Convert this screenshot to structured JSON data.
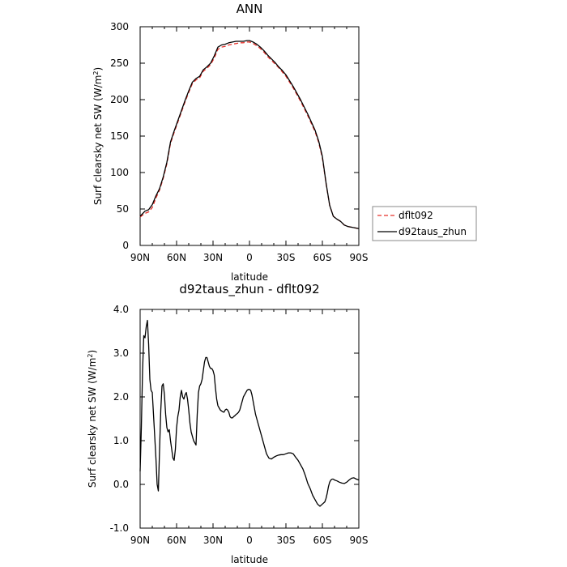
{
  "chart_data": [
    {
      "type": "line",
      "title": "ANN",
      "xlabel": "latitude",
      "ylabel": "Surf clearsky net SW (W/m",
      "ylabel_sup": "2",
      "ylabel_close": ")",
      "xlim": [
        90,
        -90
      ],
      "ylim": [
        0,
        300
      ],
      "xticks": [
        90,
        60,
        30,
        0,
        -30,
        -60,
        -90
      ],
      "xtick_labels": [
        "90N",
        "60N",
        "30N",
        "0",
        "30S",
        "60S",
        "90S"
      ],
      "yticks": [
        0,
        50,
        100,
        150,
        200,
        250,
        300
      ],
      "ytick_labels": [
        "0",
        "50",
        "100",
        "150",
        "200",
        "250",
        "300"
      ],
      "legend": {
        "placement": "right",
        "entries": [
          "dflt092",
          "d92taus_zhun"
        ]
      },
      "series": [
        {
          "name": "dflt092",
          "color": "#e8302a",
          "dash": "dashed",
          "x": [
            90,
            86,
            83,
            80,
            77,
            74,
            71,
            68,
            65,
            62,
            59,
            56,
            53,
            50,
            47,
            44,
            41,
            38,
            35,
            32,
            29,
            26,
            23,
            20,
            17,
            14,
            11,
            8,
            5,
            2,
            0,
            -3,
            -6,
            -9,
            -12,
            -15,
            -18,
            -21,
            -24,
            -27,
            -30,
            -33,
            -36,
            -39,
            -42,
            -45,
            -48,
            -51,
            -54,
            -57,
            -60,
            -63,
            -66,
            -69,
            -72,
            -75,
            -78,
            -81,
            -84,
            -87,
            -90
          ],
          "y": [
            39,
            44,
            46,
            52,
            65,
            76,
            92,
            112,
            140,
            155,
            169,
            183,
            197,
            210,
            222,
            227,
            230,
            239,
            243,
            248,
            257,
            269,
            272,
            273,
            275,
            276,
            277,
            278,
            278,
            279,
            279,
            277,
            274,
            270,
            265,
            259,
            254,
            249,
            244,
            238,
            232,
            224,
            216,
            207,
            198,
            188,
            178,
            167,
            156,
            141,
            120,
            85,
            55,
            40,
            36,
            33,
            28,
            26,
            25,
            24,
            23
          ]
        },
        {
          "name": "d92taus_zhun",
          "color": "#000000",
          "dash": "solid",
          "x": [
            90,
            86,
            83,
            80,
            77,
            74,
            71,
            68,
            65,
            62,
            59,
            56,
            53,
            50,
            47,
            44,
            41,
            38,
            35,
            32,
            29,
            26,
            23,
            20,
            17,
            14,
            11,
            8,
            5,
            2,
            0,
            -3,
            -6,
            -9,
            -12,
            -15,
            -18,
            -21,
            -24,
            -27,
            -30,
            -33,
            -36,
            -39,
            -42,
            -45,
            -48,
            -51,
            -54,
            -57,
            -60,
            -63,
            -66,
            -69,
            -72,
            -75,
            -78,
            -81,
            -84,
            -87,
            -90
          ],
          "y": [
            40,
            47,
            49,
            56,
            68,
            78,
            94,
            114,
            142,
            157,
            171,
            185,
            199,
            212,
            224,
            229,
            232,
            241,
            245,
            250,
            260,
            272,
            275,
            276,
            278,
            279,
            280,
            280,
            280,
            281,
            281,
            279,
            276,
            272,
            267,
            261,
            256,
            251,
            245,
            240,
            234,
            226,
            218,
            209,
            200,
            190,
            180,
            169,
            158,
            143,
            122,
            86,
            55,
            40,
            36,
            33,
            28,
            26,
            25,
            24,
            23
          ]
        }
      ]
    },
    {
      "type": "line",
      "title": "d92taus_zhun - dflt092",
      "xlabel": "latitude",
      "ylabel": "Surf clearsky net SW (W/m",
      "ylabel_sup": "2",
      "ylabel_close": ")",
      "xlim": [
        90,
        -90
      ],
      "ylim": [
        -1.0,
        4.0
      ],
      "xticks": [
        90,
        60,
        30,
        0,
        -30,
        -60,
        -90
      ],
      "xtick_labels": [
        "90N",
        "60N",
        "30N",
        "0",
        "30S",
        "60S",
        "90S"
      ],
      "yticks": [
        -1.0,
        0.0,
        1.0,
        2.0,
        3.0,
        4.0
      ],
      "ytick_labels": [
        "-1.0",
        "0.0",
        "1.0",
        "2.0",
        "3.0",
        "4.0"
      ],
      "series": [
        {
          "color": "#000000",
          "dash": "solid",
          "x": [
            90,
            89,
            88,
            87,
            86,
            85,
            84,
            83,
            82,
            81,
            80,
            79,
            78,
            77,
            76,
            75,
            74,
            73,
            72,
            71,
            70,
            69,
            68,
            67,
            66,
            65,
            64,
            63,
            62,
            61,
            60,
            59,
            58,
            57,
            56,
            55,
            54,
            53,
            52,
            51,
            50,
            49,
            48,
            47,
            46,
            45,
            44,
            43,
            42,
            41,
            40,
            39,
            38,
            37,
            36,
            35,
            34,
            33,
            32,
            31,
            30,
            29,
            28,
            27,
            26,
            25,
            24,
            23,
            22,
            21,
            20,
            19,
            18,
            17,
            16,
            15,
            14,
            13,
            12,
            11,
            10,
            9,
            8,
            7,
            6,
            5,
            4,
            3,
            2,
            1,
            0,
            -1,
            -2,
            -3,
            -4,
            -5,
            -6,
            -7,
            -8,
            -9,
            -10,
            -12,
            -14,
            -16,
            -18,
            -20,
            -22,
            -24,
            -26,
            -28,
            -30,
            -32,
            -34,
            -36,
            -38,
            -40,
            -42,
            -44,
            -46,
            -48,
            -50,
            -52,
            -54,
            -56,
            -58,
            -60,
            -62,
            -63,
            -64,
            -65,
            -66,
            -67,
            -68,
            -69,
            -70,
            -72,
            -74,
            -76,
            -78,
            -80,
            -82,
            -84,
            -86,
            -88,
            -90
          ],
          "y": [
            0.3,
            1.3,
            2.6,
            3.4,
            3.35,
            3.6,
            3.75,
            3.2,
            2.4,
            2.15,
            2.1,
            1.6,
            1.1,
            0.6,
            0.0,
            -0.15,
            0.8,
            1.7,
            2.25,
            2.3,
            2.05,
            1.6,
            1.3,
            1.2,
            1.25,
            1.0,
            0.8,
            0.6,
            0.55,
            0.8,
            1.3,
            1.55,
            1.7,
            2.0,
            2.15,
            2.0,
            1.95,
            2.05,
            2.1,
            1.95,
            1.7,
            1.4,
            1.2,
            1.1,
            1.0,
            0.95,
            0.9,
            1.6,
            2.1,
            2.25,
            2.3,
            2.4,
            2.6,
            2.8,
            2.9,
            2.9,
            2.8,
            2.7,
            2.65,
            2.65,
            2.6,
            2.5,
            2.2,
            1.95,
            1.8,
            1.75,
            1.7,
            1.68,
            1.66,
            1.65,
            1.7,
            1.72,
            1.7,
            1.65,
            1.55,
            1.52,
            1.52,
            1.55,
            1.57,
            1.6,
            1.62,
            1.65,
            1.7,
            1.8,
            1.9,
            2.0,
            2.05,
            2.1,
            2.15,
            2.17,
            2.17,
            2.15,
            2.05,
            1.9,
            1.75,
            1.6,
            1.5,
            1.4,
            1.3,
            1.2,
            1.1,
            0.9,
            0.7,
            0.6,
            0.58,
            0.62,
            0.65,
            0.67,
            0.68,
            0.68,
            0.7,
            0.72,
            0.72,
            0.7,
            0.62,
            0.55,
            0.45,
            0.35,
            0.2,
            0.02,
            -0.1,
            -0.25,
            -0.35,
            -0.45,
            -0.5,
            -0.45,
            -0.4,
            -0.32,
            -0.2,
            -0.05,
            0.05,
            0.1,
            0.12,
            0.12,
            0.1,
            0.08,
            0.05,
            0.03,
            0.02,
            0.05,
            0.1,
            0.14,
            0.15,
            0.12,
            0.1
          ]
        }
      ]
    }
  ]
}
